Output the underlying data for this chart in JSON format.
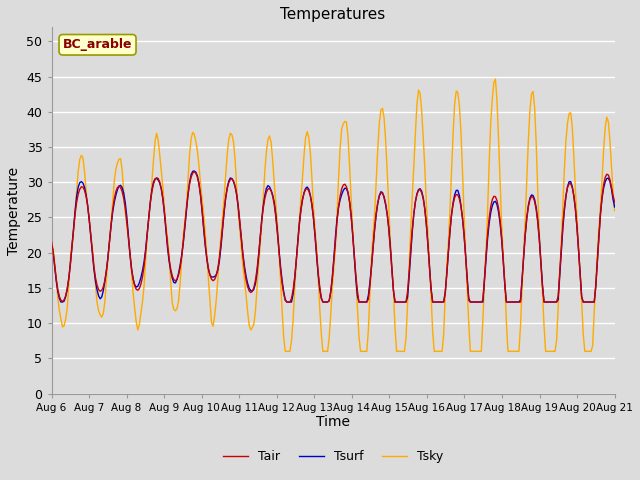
{
  "title": "Temperatures",
  "xlabel": "Time",
  "ylabel": "Temperature",
  "ylim": [
    0,
    52
  ],
  "yticks": [
    0,
    5,
    10,
    15,
    20,
    25,
    30,
    35,
    40,
    45,
    50
  ],
  "bg_color": "#dcdcdc",
  "plot_bg_color": "#dcdcdc",
  "line_colors": {
    "Tair": "#cc0000",
    "Tsurf": "#0000cc",
    "Tsky": "#ffaa00"
  },
  "line_widths": {
    "Tair": 1.0,
    "Tsurf": 1.0,
    "Tsky": 1.0
  },
  "annotation_text": "BC_arable",
  "annotation_color": "#8b0000",
  "annotation_bg": "#ffffcc",
  "annotation_edge": "#999900",
  "xtick_labels": [
    "Aug 6",
    "Aug 7",
    "Aug 8",
    "Aug 9",
    "Aug 10",
    "Aug 11",
    "Aug 12",
    "Aug 13",
    "Aug 14",
    "Aug 15",
    "Aug 16",
    "Aug 17",
    "Aug 18",
    "Aug 19",
    "Aug 20",
    "Aug 21"
  ],
  "xtick_positions": [
    6,
    7,
    8,
    9,
    10,
    11,
    12,
    13,
    14,
    15,
    16,
    17,
    18,
    19,
    20,
    21
  ]
}
